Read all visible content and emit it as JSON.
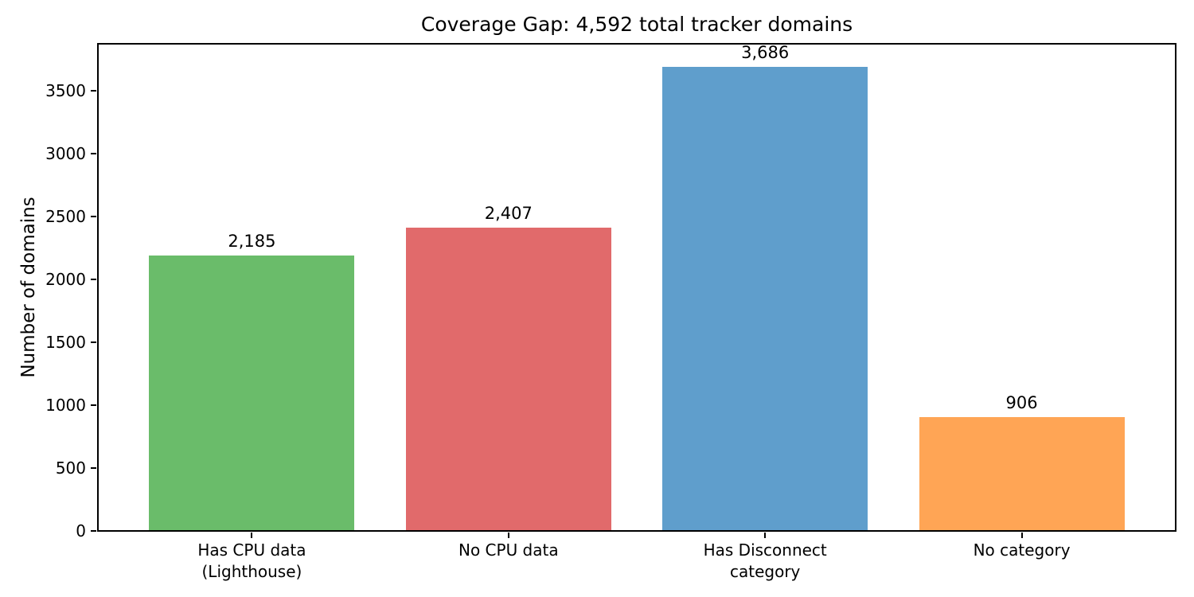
{
  "chart_data": {
    "type": "bar",
    "title": "Coverage Gap: 4,592 total tracker domains",
    "xlabel": "",
    "ylabel": "Number of domains",
    "categories": [
      "Has CPU data\n(Lighthouse)",
      "No CPU data",
      "Has Disconnect\ncategory",
      "No category"
    ],
    "values": [
      2185,
      2407,
      3686,
      906
    ],
    "value_labels": [
      "2,185",
      "2,407",
      "3,686",
      "906"
    ],
    "bar_colors": [
      "#6abc6a",
      "#e16a6b",
      "#5f9ecc",
      "#ffa555"
    ],
    "yticks": [
      0,
      500,
      1000,
      1500,
      2000,
      2500,
      3000,
      3500
    ],
    "ylim": [
      0,
      3870
    ],
    "xlim": [
      -0.6,
      3.6
    ],
    "bar_width": 0.8,
    "grid": false,
    "legend": "none",
    "text_color": "#000000",
    "spine_color": "#000000"
  }
}
